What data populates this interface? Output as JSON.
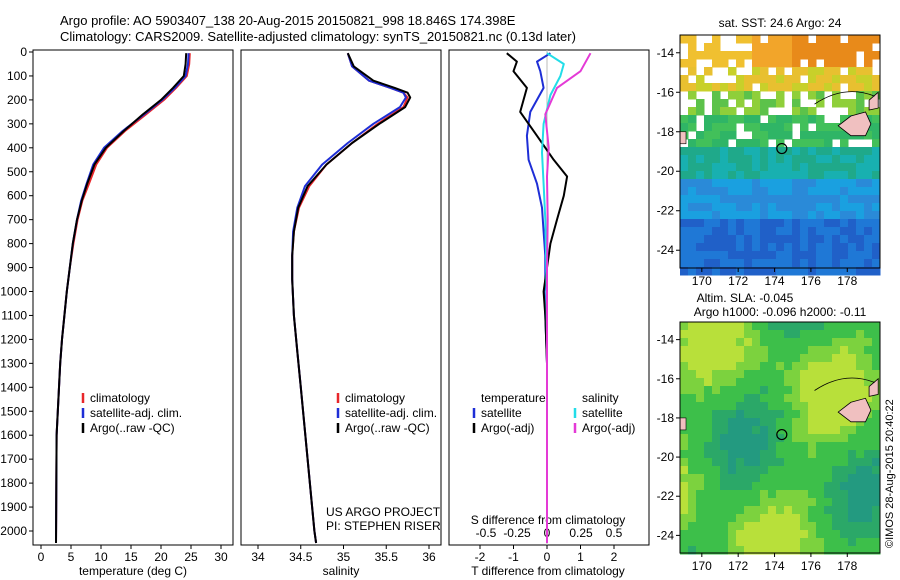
{
  "header": {
    "line1": "Argo profile: AO 5903407_138 20-Aug-2015 20150821_998 18.846S 174.398E",
    "line2": "Climatology: CARS2009. Satellite-adjusted climatology: synTS_20150821.nc (0.13d later)"
  },
  "colors": {
    "climatology": "#e8262a",
    "satellite": "#1e2ed6",
    "argo": "#000000",
    "sat_salinity": "#22dde8",
    "argo_salinity": "#e43ad6"
  },
  "chart_data": [
    {
      "type": "line",
      "panel": "temperature",
      "xlabel": "temperature (deg C)",
      "ylabel": "",
      "xlim": [
        -2,
        31
      ],
      "ylim": [
        2100,
        0
      ],
      "xticks": [
        0,
        5,
        10,
        15,
        20,
        25,
        30
      ],
      "yticks": [
        0,
        100,
        200,
        300,
        400,
        500,
        600,
        700,
        800,
        900,
        1000,
        1100,
        1200,
        1300,
        1400,
        1500,
        1600,
        1700,
        1800,
        1900,
        2000
      ],
      "legend": [
        "climatology",
        "satellite-adj. clim.",
        "Argo(..raw -QC)"
      ],
      "series": [
        {
          "name": "climatology",
          "x": [
            24.8,
            24.7,
            24.3,
            22.5,
            20.5,
            17.5,
            14.0,
            11.0,
            9.2,
            8.0,
            6.9,
            6.1,
            5.4,
            4.8,
            4.3,
            3.9,
            3.5,
            3.2,
            3.0,
            2.8,
            2.6,
            2.5
          ],
          "y": [
            5,
            50,
            100,
            150,
            200,
            260,
            330,
            400,
            470,
            550,
            620,
            700,
            800,
            900,
            1000,
            1100,
            1200,
            1300,
            1400,
            1500,
            1600,
            2050
          ]
        },
        {
          "name": "satellite-adj. clim.",
          "x": [
            24.6,
            24.5,
            24.1,
            22.3,
            20.2,
            17.2,
            13.6,
            10.5,
            8.7,
            7.6,
            6.7,
            6.0,
            5.3,
            4.8,
            4.3,
            3.9,
            3.5,
            3.2,
            3.0,
            2.8,
            2.6,
            2.5
          ],
          "y": [
            5,
            50,
            100,
            150,
            200,
            260,
            330,
            400,
            470,
            550,
            620,
            700,
            800,
            900,
            1000,
            1100,
            1200,
            1300,
            1400,
            1500,
            1600,
            2050
          ]
        },
        {
          "name": "Argo(..raw -QC)",
          "x": [
            24.2,
            24.1,
            23.8,
            22.0,
            20.0,
            17.0,
            13.8,
            10.8,
            8.9,
            7.7,
            6.8,
            6.0,
            5.3,
            4.8,
            4.3,
            3.9,
            3.5,
            3.2,
            3.0,
            2.8,
            2.6,
            2.5
          ],
          "y": [
            5,
            50,
            100,
            150,
            200,
            260,
            330,
            400,
            470,
            550,
            620,
            700,
            800,
            900,
            1000,
            1100,
            1200,
            1300,
            1400,
            1500,
            1600,
            2050
          ]
        }
      ]
    },
    {
      "type": "line",
      "panel": "salinity",
      "xlabel": "salinity",
      "xlim": [
        33.6,
        36.2
      ],
      "ylim": [
        2100,
        0
      ],
      "xticks": [
        34,
        34.5,
        35,
        35.5,
        36
      ],
      "legend": [
        "climatology",
        "satellite-adj. clim.",
        "Argo(..raw -QC)"
      ],
      "series": [
        {
          "name": "climatology",
          "x": [
            35.05,
            35.1,
            35.3,
            35.55,
            35.7,
            35.75,
            35.7,
            35.4,
            35.1,
            34.8,
            34.6,
            34.48,
            34.42,
            34.4,
            34.4,
            34.42,
            34.46,
            34.5,
            34.54,
            34.58,
            34.62,
            34.66,
            34.68
          ],
          "y": [
            5,
            60,
            120,
            150,
            170,
            190,
            230,
            300,
            380,
            470,
            560,
            650,
            750,
            850,
            950,
            1100,
            1250,
            1400,
            1550,
            1700,
            1850,
            2000,
            2050
          ]
        },
        {
          "name": "satellite-adj. clim.",
          "x": [
            35.05,
            35.1,
            35.3,
            35.55,
            35.7,
            35.73,
            35.66,
            35.35,
            35.05,
            34.75,
            34.55,
            34.46,
            34.41,
            34.4,
            34.4,
            34.42,
            34.46,
            34.5,
            34.54,
            34.58,
            34.62,
            34.66,
            34.68
          ],
          "y": [
            5,
            60,
            120,
            150,
            170,
            190,
            230,
            300,
            380,
            470,
            560,
            650,
            750,
            850,
            950,
            1100,
            1250,
            1400,
            1550,
            1700,
            1850,
            2000,
            2050
          ]
        },
        {
          "name": "Argo(..raw -QC)",
          "x": [
            35.05,
            35.12,
            35.35,
            35.6,
            35.75,
            35.78,
            35.72,
            35.42,
            35.1,
            34.8,
            34.58,
            34.47,
            34.42,
            34.4,
            34.4,
            34.42,
            34.46,
            34.5,
            34.54,
            34.58,
            34.62,
            34.66,
            34.68
          ],
          "y": [
            5,
            60,
            120,
            150,
            170,
            190,
            230,
            300,
            380,
            470,
            560,
            650,
            750,
            850,
            950,
            1100,
            1250,
            1400,
            1550,
            1700,
            1850,
            2000,
            2050
          ]
        }
      ],
      "annotations": [
        "US ARGO PROJECT",
        "PI: STEPHEN RISER"
      ]
    },
    {
      "type": "line",
      "panel": "difference",
      "xlabel": "T difference from climatology",
      "xlabel_top": "S difference from climatology",
      "xlim": [
        -2.6,
        2.4
      ],
      "ylim": [
        2100,
        0
      ],
      "xticks_T": [
        -2,
        -1,
        0,
        1,
        2
      ],
      "xticks_S": [
        "-0.5",
        "-0.25",
        "0",
        "0.25",
        "0.5"
      ],
      "legend_temperature": [
        "temperature",
        "satellite",
        "Argo(-adj)"
      ],
      "legend_salinity": [
        "salinity",
        "satellite",
        "Argo(-adj)"
      ],
      "series": [
        {
          "name": "temperature satellite",
          "x": [
            0.1,
            -0.3,
            -0.2,
            -0.1,
            -0.5,
            -0.6,
            -0.55,
            -0.3,
            -0.15,
            -0.1,
            -0.05,
            -0.05,
            -0.08,
            -0.05,
            0,
            0
          ],
          "y": [
            5,
            40,
            80,
            150,
            250,
            350,
            450,
            550,
            650,
            750,
            850,
            950,
            1000,
            1100,
            1300,
            2050
          ]
        },
        {
          "name": "temperature Argo(-adj)",
          "x": [
            -1.2,
            -0.9,
            -1.0,
            -0.6,
            -0.8,
            -0.3,
            0.2,
            0.6,
            0.5,
            0.3,
            0.1,
            0,
            -0.1,
            -0.05,
            0,
            0
          ],
          "y": [
            5,
            40,
            80,
            150,
            250,
            350,
            450,
            520,
            600,
            700,
            800,
            900,
            1000,
            1100,
            1300,
            2050
          ]
        },
        {
          "name": "salinity satellite",
          "x": [
            0.0,
            0.5,
            0.4,
            0.1,
            -0.1,
            -0.15,
            -0.1,
            -0.05,
            -0.02,
            0,
            0
          ],
          "y": [
            5,
            50,
            100,
            180,
            300,
            420,
            550,
            700,
            900,
            1200,
            2050
          ]
        },
        {
          "name": "salinity Argo(-adj)",
          "x": [
            1.3,
            1.0,
            0.3,
            -0.05,
            0.05,
            0.0,
            0.02,
            0,
            0,
            0
          ],
          "y": [
            5,
            80,
            150,
            260,
            400,
            520,
            700,
            900,
            1200,
            2050
          ]
        }
      ]
    },
    {
      "type": "heatmap",
      "panel": "map-sst",
      "title": "sat. SST: 24.6  Argo: 24",
      "xticks": [
        170,
        172,
        174,
        176,
        178
      ],
      "yticks": [
        -14,
        -16,
        -18,
        -20,
        -22,
        -24
      ],
      "xlim": [
        168.8,
        179.8
      ],
      "ylim": [
        -24.9,
        -13.1
      ],
      "marker": {
        "lon": 174.4,
        "lat": -18.85
      }
    },
    {
      "type": "heatmap",
      "panel": "map-sla",
      "title": "Altim. SLA: -0.045",
      "subtitle": "Argo h1000: -0.096  h2000: -0.11",
      "xticks": [
        170,
        172,
        174,
        176,
        178
      ],
      "yticks": [
        -14,
        -16,
        -18,
        -20,
        -22,
        -24
      ],
      "xlim": [
        168.8,
        179.8
      ],
      "ylim": [
        -24.9,
        -13.1
      ],
      "marker": {
        "lon": 174.4,
        "lat": -18.85
      }
    }
  ],
  "credit": "©IMOS 28-Aug-2015 20:40:22"
}
